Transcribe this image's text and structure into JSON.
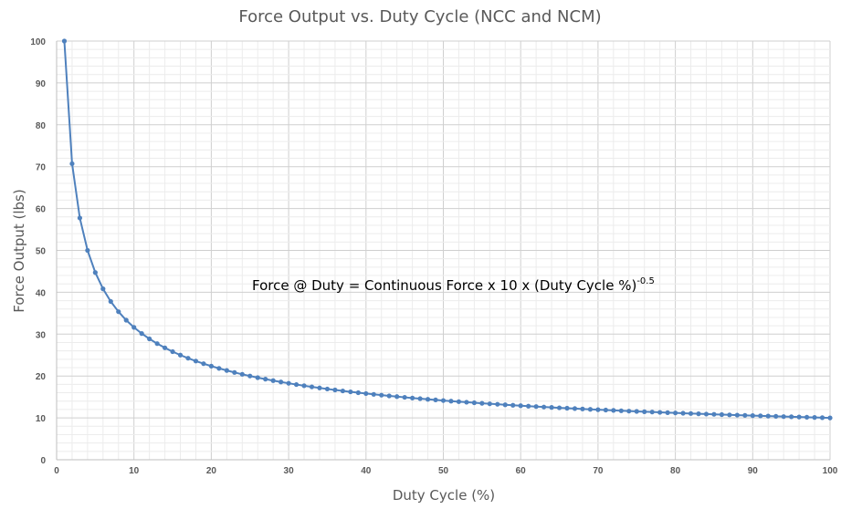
{
  "chart_data": {
    "type": "scatter",
    "title": "Force Output vs. Duty Cycle (NCC and NCM)",
    "xlabel": "Duty Cycle (%)",
    "ylabel": "Force Output (lbs)",
    "xlim": [
      0,
      100
    ],
    "ylim": [
      0,
      100
    ],
    "x_major_step": 10,
    "y_major_step": 10,
    "x_ticks": [
      "0",
      "10",
      "20",
      "30",
      "40",
      "50",
      "60",
      "70",
      "80",
      "90",
      "100"
    ],
    "y_ticks": [
      "0",
      "10",
      "20",
      "30",
      "40",
      "50",
      "60",
      "70",
      "80",
      "90",
      "100"
    ],
    "grid": true,
    "legend": "none",
    "color": "#4f81bd",
    "annotation": {
      "text": "Force @ Duty = Continuous Force x 10 x (Duty Cycle %)",
      "superscript": "-0.5"
    },
    "series": [
      {
        "x": [
          1,
          2,
          3,
          4,
          5,
          6,
          7,
          8,
          9,
          10,
          11,
          12,
          13,
          14,
          15,
          16,
          17,
          18,
          19,
          20,
          21,
          22,
          23,
          24,
          25,
          26,
          27,
          28,
          29,
          30,
          31,
          32,
          33,
          34,
          35,
          36,
          37,
          38,
          39,
          40,
          41,
          42,
          43,
          44,
          45,
          46,
          47,
          48,
          49,
          50,
          51,
          52,
          53,
          54,
          55,
          56,
          57,
          58,
          59,
          60,
          61,
          62,
          63,
          64,
          65,
          66,
          67,
          68,
          69,
          70,
          71,
          72,
          73,
          74,
          75,
          76,
          77,
          78,
          79,
          80,
          81,
          82,
          83,
          84,
          85,
          86,
          87,
          88,
          89,
          90,
          91,
          92,
          93,
          94,
          95,
          96,
          97,
          98,
          99,
          100
        ],
        "y": [
          100.0,
          70.71,
          57.74,
          50.0,
          44.72,
          40.82,
          37.8,
          35.36,
          33.33,
          31.62,
          30.15,
          28.87,
          27.74,
          26.73,
          25.82,
          25.0,
          24.25,
          23.57,
          22.94,
          22.36,
          21.82,
          21.32,
          20.85,
          20.41,
          20.0,
          19.61,
          19.25,
          18.9,
          18.57,
          18.26,
          17.96,
          17.68,
          17.41,
          17.15,
          16.9,
          16.67,
          16.44,
          16.22,
          16.01,
          15.81,
          15.62,
          15.43,
          15.25,
          15.08,
          14.91,
          14.74,
          14.59,
          14.43,
          14.29,
          14.14,
          14.0,
          13.87,
          13.74,
          13.61,
          13.48,
          13.36,
          13.25,
          13.13,
          13.02,
          12.91,
          12.8,
          12.7,
          12.6,
          12.5,
          12.4,
          12.31,
          12.22,
          12.13,
          12.04,
          11.95,
          11.87,
          11.79,
          11.7,
          11.62,
          11.55,
          11.47,
          11.4,
          11.32,
          11.25,
          11.18,
          11.11,
          11.04,
          10.98,
          10.91,
          10.85,
          10.78,
          10.72,
          10.66,
          10.6,
          10.54,
          10.48,
          10.43,
          10.37,
          10.31,
          10.26,
          10.21,
          10.15,
          10.1,
          10.05,
          10.0
        ]
      }
    ]
  }
}
